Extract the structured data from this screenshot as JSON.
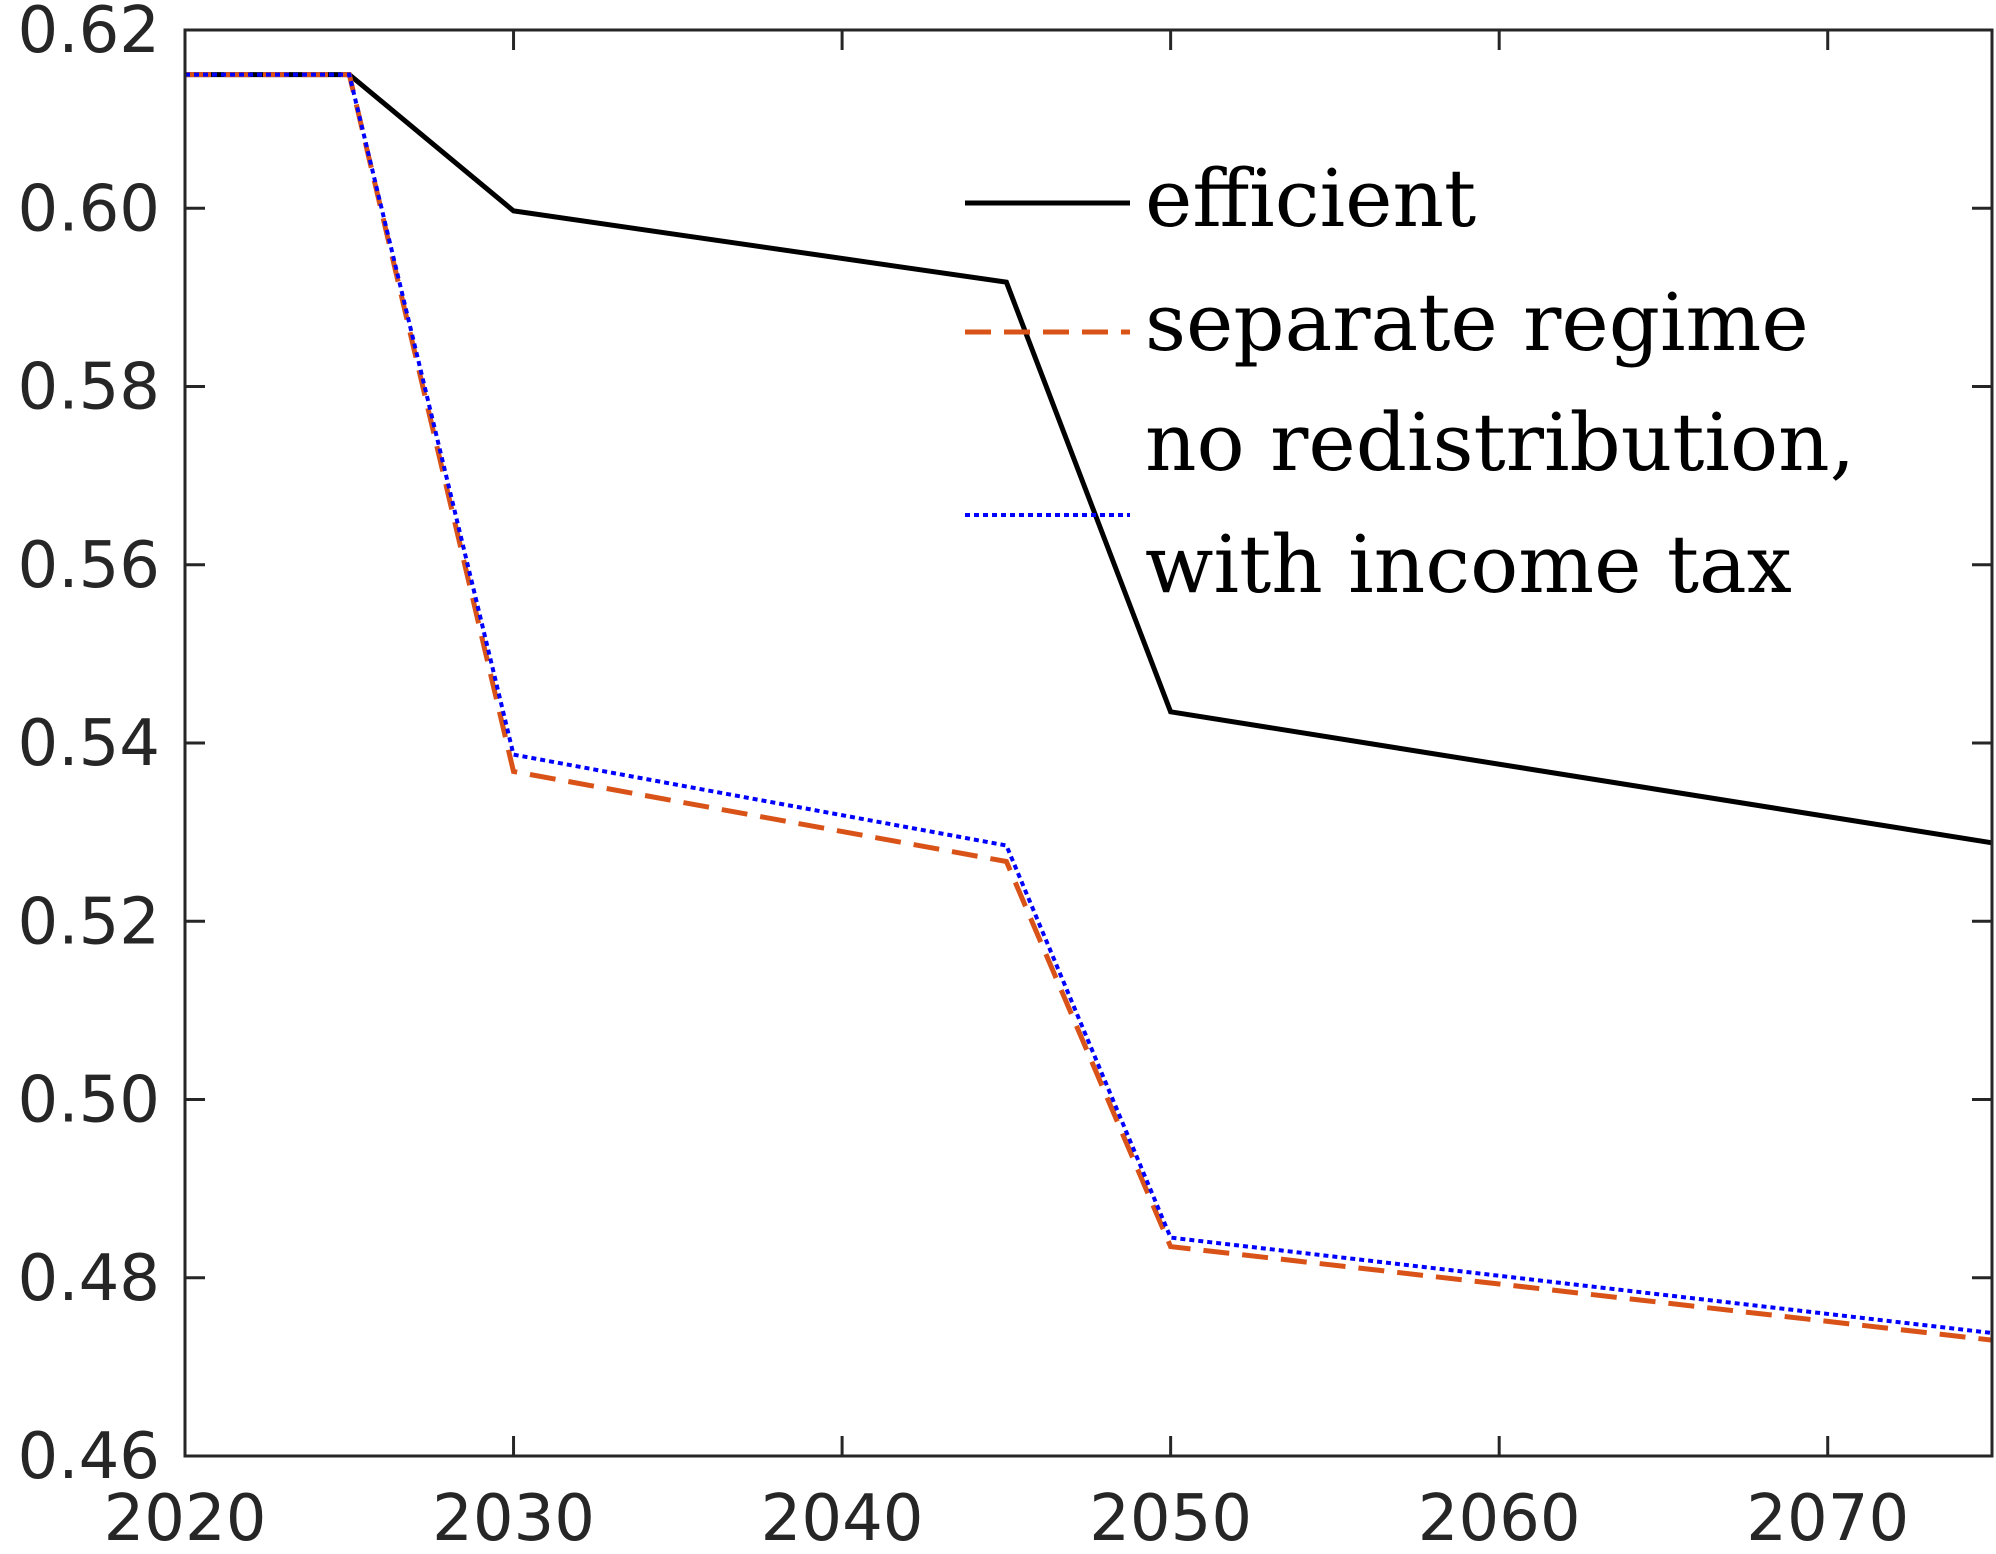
{
  "chart_data": {
    "type": "line",
    "title": "",
    "xlabel": "",
    "ylabel": "",
    "xlim": [
      2020,
      2075
    ],
    "ylim": [
      0.46,
      0.62
    ],
    "xticks": [
      2020,
      2030,
      2040,
      2050,
      2060,
      2070
    ],
    "xtick_labels": [
      "2020",
      "2030",
      "2040",
      "2050",
      "2060",
      "2070"
    ],
    "yticks": [
      0.46,
      0.48,
      0.5,
      0.52,
      0.54,
      0.56,
      0.58,
      0.6,
      0.62
    ],
    "ytick_labels": [
      "0.46",
      "0.48",
      "0.50",
      "0.52",
      "0.54",
      "0.56",
      "0.58",
      "0.60",
      "0.62"
    ],
    "grid": false,
    "legend_position": "top-right",
    "series": [
      {
        "name": "efficient",
        "color": "#000000",
        "style": "solid",
        "x": [
          2020,
          2025,
          2030,
          2045,
          2050,
          2075
        ],
        "y": [
          0.615,
          0.615,
          0.5997,
          0.5917,
          0.5435,
          0.5288
        ]
      },
      {
        "name": "separate regime",
        "color": "#D95319",
        "style": "dashed",
        "x": [
          2020,
          2025,
          2030,
          2045,
          2050,
          2075
        ],
        "y": [
          0.615,
          0.615,
          0.5368,
          0.5267,
          0.4835,
          0.473
        ]
      },
      {
        "name": "no redistribution, with income tax",
        "legend_lines": [
          "no redistribution,",
          "with income tax"
        ],
        "color": "#0000FF",
        "style": "dotted",
        "x": [
          2020,
          2025,
          2030,
          2045,
          2050,
          2075
        ],
        "y": [
          0.615,
          0.615,
          0.5387,
          0.5285,
          0.4845,
          0.4738
        ]
      }
    ]
  }
}
